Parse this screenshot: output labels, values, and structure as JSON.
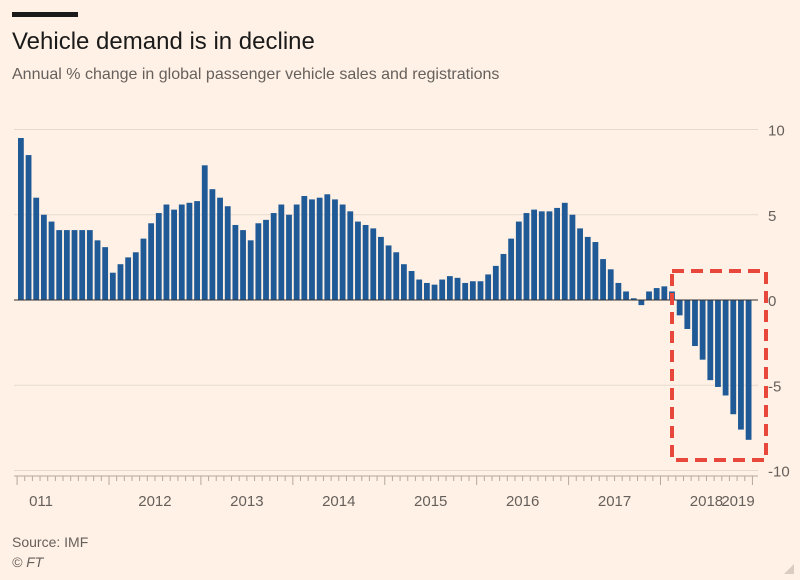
{
  "header": {
    "title": "Vehicle demand is in decline",
    "subtitle": "Annual % change in global passenger vehicle sales and registrations"
  },
  "footer": {
    "source": "Source: IMF",
    "credit": "© FT"
  },
  "colors": {
    "background": "#FFF1E5",
    "bar": "#1F5A96",
    "highlight_box": "#E8473C",
    "grid": "#E6D9CE",
    "axis_text": "#66605C"
  },
  "chart_data": {
    "type": "bar",
    "title": "Vehicle demand is in decline",
    "subtitle": "Annual % change in global passenger vehicle sales and registrations",
    "xlabel": "",
    "ylabel": "",
    "ylim": [
      -10,
      10
    ],
    "y_ticks": [
      "10",
      "5",
      "0",
      "-5",
      "-10"
    ],
    "y_axis_position": "right",
    "grid": true,
    "x_tick_labels": [
      "011",
      "2012",
      "2013",
      "2014",
      "2015",
      "2016",
      "2017",
      "2018",
      "2019"
    ],
    "x_start": "2011-01",
    "frequency": "monthly",
    "values": [
      9.5,
      8.5,
      6.0,
      5.0,
      4.6,
      4.1,
      4.1,
      4.1,
      4.1,
      4.1,
      3.5,
      3.1,
      1.6,
      2.1,
      2.5,
      2.8,
      3.6,
      4.5,
      5.1,
      5.6,
      5.3,
      5.6,
      5.7,
      5.8,
      7.9,
      6.5,
      6.0,
      5.5,
      4.4,
      4.1,
      3.5,
      4.5,
      4.7,
      5.1,
      5.6,
      5.0,
      5.6,
      6.1,
      5.9,
      6.0,
      6.2,
      5.9,
      5.6,
      5.2,
      4.6,
      4.4,
      4.2,
      3.7,
      3.2,
      2.8,
      2.1,
      1.7,
      1.2,
      1.0,
      0.9,
      1.2,
      1.4,
      1.3,
      1.0,
      1.1,
      1.1,
      1.5,
      2.0,
      2.7,
      3.6,
      4.6,
      5.1,
      5.3,
      5.2,
      5.2,
      5.4,
      5.7,
      5.0,
      4.2,
      3.7,
      3.4,
      2.4,
      1.8,
      1.0,
      0.5,
      0.1,
      -0.3,
      0.5,
      0.7,
      0.8,
      0.5,
      -0.9,
      -1.7,
      -2.7,
      -3.5,
      -4.7,
      -5.1,
      -5.6,
      -6.7,
      -7.6,
      -8.2
    ],
    "annotation": "dashed red box highlighting the 2018–2019 decline"
  }
}
